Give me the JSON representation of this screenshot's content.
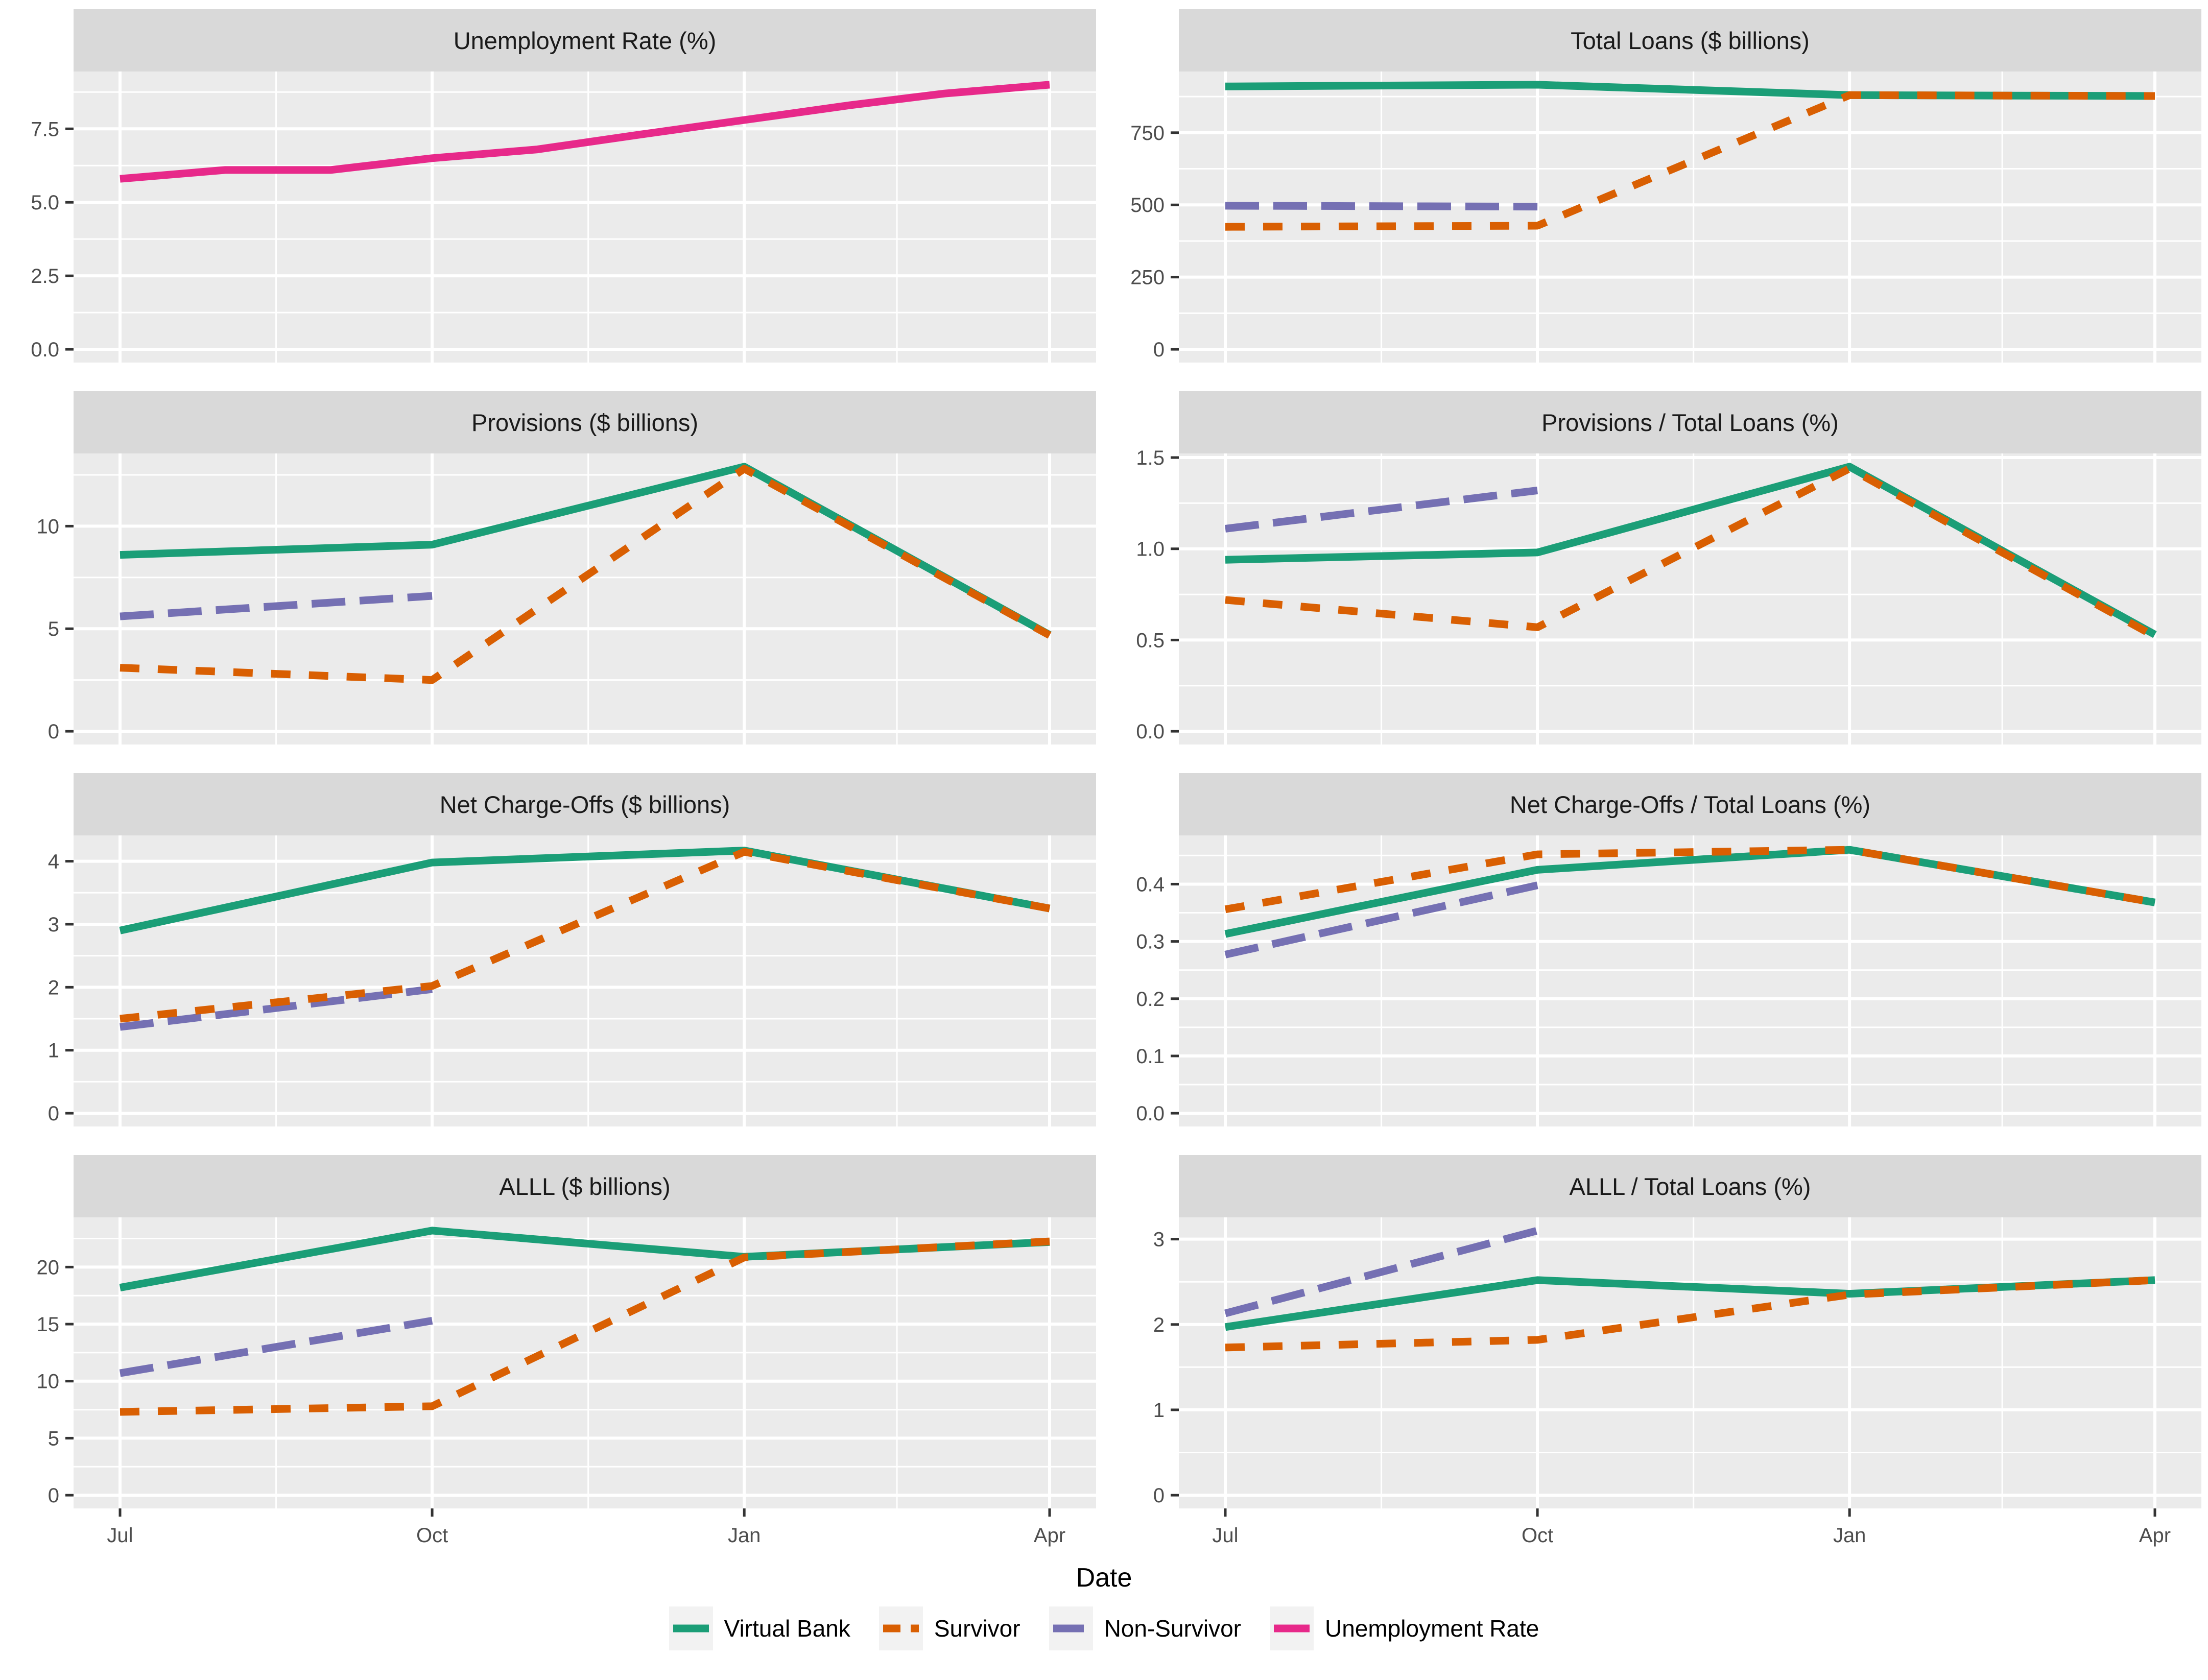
{
  "x_axis": {
    "label": "Date",
    "tick_labels": [
      "Jul",
      "Oct",
      "Jan",
      "Apr"
    ],
    "tick_days": [
      0,
      92,
      184,
      274
    ],
    "minor_days": [
      46,
      138,
      229
    ],
    "domain_days": [
      -13.7,
      287.7
    ]
  },
  "legend": {
    "items": [
      {
        "label": "Virtual Bank",
        "color": "#1B9E77",
        "dash": "solid"
      },
      {
        "label": "Survivor",
        "color": "#D95F02",
        "dash": "dashed"
      },
      {
        "label": "Non-Survivor",
        "color": "#7570B3",
        "dash": "longdash"
      },
      {
        "label": "Unemployment Rate",
        "color": "#E7298A",
        "dash": "solid"
      }
    ]
  },
  "style": {
    "panel_bg": "#EBEBEB",
    "strip_bg": "#D9D9D9",
    "grid_color": "#FFFFFF",
    "tick_text_color": "#4D4D4D",
    "tick_mark_color": "#333333",
    "legend_key_bg": "#F2F2F2",
    "line_width": 15
  },
  "chart_data": [
    {
      "type": "line",
      "title": "Unemployment Rate (%)",
      "ylim": [
        -0.45,
        9.45
      ],
      "yticks": [
        0,
        2.5,
        5,
        7.5
      ],
      "ytick_labels": [
        "0.0",
        "2.5",
        "5.0",
        "7.5"
      ],
      "yminor": [
        1.25,
        3.75,
        6.25,
        8.75
      ],
      "series": [
        {
          "name": "Unemployment Rate",
          "x_days": [
            0,
            31,
            62,
            92,
            123,
            153,
            184,
            215,
            243,
            274
          ],
          "values": [
            5.8,
            6.1,
            6.1,
            6.5,
            6.8,
            7.3,
            7.8,
            8.3,
            8.7,
            9.0
          ]
        }
      ]
    },
    {
      "type": "line",
      "title": "Total Loans ($ billions)",
      "ylim": [
        -45.8,
        961.8
      ],
      "yticks": [
        0,
        250,
        500,
        750
      ],
      "ytick_labels": [
        "0",
        "250",
        "500",
        "750"
      ],
      "yminor": [
        125,
        375,
        625,
        875
      ],
      "series": [
        {
          "name": "Virtual Bank",
          "x_days": [
            0,
            92,
            184,
            274
          ],
          "values": [
            910,
            916,
            880,
            877
          ]
        },
        {
          "name": "Non-Survivor",
          "x_days": [
            0,
            92
          ],
          "values": [
            497,
            494
          ]
        },
        {
          "name": "Survivor",
          "x_days": [
            0,
            92,
            184,
            274
          ],
          "values": [
            424,
            428,
            880,
            877
          ]
        }
      ]
    },
    {
      "type": "line",
      "title": "Provisions ($ billions)",
      "ylim": [
        -0.645,
        13.545
      ],
      "yticks": [
        0,
        5,
        10
      ],
      "ytick_labels": [
        "0",
        "5",
        "10"
      ],
      "yminor": [
        2.5,
        7.5,
        12.5
      ],
      "series": [
        {
          "name": "Virtual Bank",
          "x_days": [
            0,
            92,
            184,
            274
          ],
          "values": [
            8.6,
            9.1,
            12.9,
            4.7
          ]
        },
        {
          "name": "Non-Survivor",
          "x_days": [
            0,
            92
          ],
          "values": [
            5.6,
            6.6
          ]
        },
        {
          "name": "Survivor",
          "x_days": [
            0,
            92,
            184,
            274
          ],
          "values": [
            3.1,
            2.5,
            12.8,
            4.68
          ]
        }
      ]
    },
    {
      "type": "line",
      "title": "Provisions / Total Loans (%)",
      "ylim": [
        -0.0725,
        1.5225
      ],
      "yticks": [
        0,
        0.5,
        1,
        1.5
      ],
      "ytick_labels": [
        "0.0",
        "0.5",
        "1.0",
        "1.5"
      ],
      "yminor": [
        0.25,
        0.75,
        1.25
      ],
      "series": [
        {
          "name": "Virtual Bank",
          "x_days": [
            0,
            92,
            184,
            274
          ],
          "values": [
            0.94,
            0.98,
            1.45,
            0.53
          ]
        },
        {
          "name": "Non-Survivor",
          "x_days": [
            0,
            92
          ],
          "values": [
            1.11,
            1.32
          ]
        },
        {
          "name": "Survivor",
          "x_days": [
            0,
            92,
            184,
            274
          ],
          "values": [
            0.72,
            0.57,
            1.44,
            0.52
          ]
        }
      ]
    },
    {
      "type": "line",
      "title": "Net Charge-Offs ($ billions)",
      "ylim": [
        -0.21,
        4.41
      ],
      "yticks": [
        0,
        1,
        2,
        3,
        4
      ],
      "ytick_labels": [
        "0",
        "1",
        "2",
        "3",
        "4"
      ],
      "yminor": [
        0.5,
        1.5,
        2.5,
        3.5
      ],
      "series": [
        {
          "name": "Virtual Bank",
          "x_days": [
            0,
            92,
            184,
            274
          ],
          "values": [
            2.9,
            3.98,
            4.17,
            3.25
          ]
        },
        {
          "name": "Non-Survivor",
          "x_days": [
            0,
            92
          ],
          "values": [
            1.37,
            1.97
          ]
        },
        {
          "name": "Survivor",
          "x_days": [
            0,
            92,
            184,
            274
          ],
          "values": [
            1.5,
            2.02,
            4.15,
            3.25
          ]
        }
      ]
    },
    {
      "type": "line",
      "title": "Net Charge-Offs / Total Loans (%)",
      "ylim": [
        -0.0231,
        0.4851
      ],
      "yticks": [
        0,
        0.1,
        0.2,
        0.3,
        0.4
      ],
      "ytick_labels": [
        "0.0",
        "0.1",
        "0.2",
        "0.3",
        "0.4"
      ],
      "yminor": [
        0.05,
        0.15,
        0.25,
        0.35,
        0.45
      ],
      "series": [
        {
          "name": "Virtual Bank",
          "x_days": [
            0,
            92,
            184,
            274
          ],
          "values": [
            0.313,
            0.425,
            0.46,
            0.368
          ]
        },
        {
          "name": "Non-Survivor",
          "x_days": [
            0,
            92
          ],
          "values": [
            0.277,
            0.398
          ]
        },
        {
          "name": "Survivor",
          "x_days": [
            0,
            92,
            184,
            274
          ],
          "values": [
            0.356,
            0.452,
            0.46,
            0.368
          ]
        }
      ]
    },
    {
      "type": "line",
      "title": "ALLL ($ billions)",
      "ylim": [
        -1.16,
        24.36
      ],
      "yticks": [
        0,
        5,
        10,
        15,
        20
      ],
      "ytick_labels": [
        "0",
        "5",
        "10",
        "15",
        "20"
      ],
      "yminor": [
        2.5,
        7.5,
        12.5,
        17.5,
        22.5
      ],
      "series": [
        {
          "name": "Virtual Bank",
          "x_days": [
            0,
            92,
            184,
            274
          ],
          "values": [
            18.2,
            23.2,
            20.9,
            22.2
          ]
        },
        {
          "name": "Non-Survivor",
          "x_days": [
            0,
            92
          ],
          "values": [
            10.7,
            15.3
          ]
        },
        {
          "name": "Survivor",
          "x_days": [
            0,
            92,
            184,
            274
          ],
          "values": [
            7.3,
            7.8,
            20.85,
            22.25
          ]
        }
      ]
    },
    {
      "type": "line",
      "title": "ALLL / Total Loans (%)",
      "ylim": [
        -0.155,
        3.255
      ],
      "yticks": [
        0,
        1,
        2,
        3
      ],
      "ytick_labels": [
        "0",
        "1",
        "2",
        "3"
      ],
      "yminor": [
        0.5,
        1.5,
        2.5
      ],
      "series": [
        {
          "name": "Virtual Bank",
          "x_days": [
            0,
            92,
            184,
            274
          ],
          "values": [
            1.97,
            2.52,
            2.36,
            2.52
          ]
        },
        {
          "name": "Non-Survivor",
          "x_days": [
            0,
            92
          ],
          "values": [
            2.13,
            3.1
          ]
        },
        {
          "name": "Survivor",
          "x_days": [
            0,
            92,
            184,
            274
          ],
          "values": [
            1.73,
            1.82,
            2.35,
            2.52
          ]
        }
      ]
    }
  ]
}
